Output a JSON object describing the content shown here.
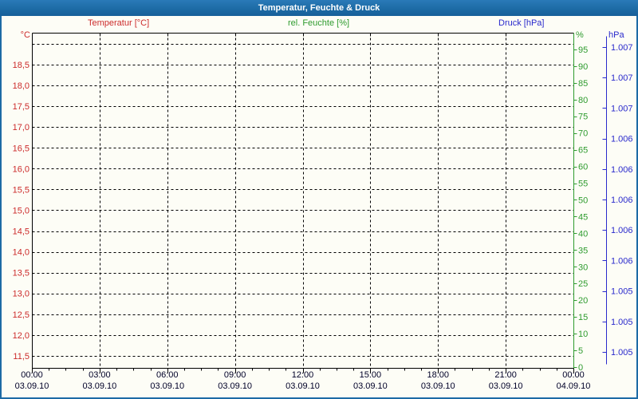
{
  "window": {
    "title": "Temperatur, Feuchte & Druck"
  },
  "colors": {
    "titlebar_bg": "#1d6ba5",
    "titlebar_text": "#ffffff",
    "background": "#fdfdf6",
    "frame": "#000000",
    "grid": "#000000",
    "x_label": "#000028",
    "temperature": "#cc2b2b",
    "humidity": "#2e9b2e",
    "pressure": "#2929cc"
  },
  "chart_data": {
    "type": "line",
    "title": "Temperatur, Feuchte & Druck",
    "legend_position": "top",
    "plotted_points_visible": false,
    "series": [
      {
        "name": "Temperatur [°C]",
        "color": "#cc2b2b",
        "axis": "temperature",
        "points": []
      },
      {
        "name": "rel. Feuchte [%]",
        "color": "#2e9b2e",
        "axis": "humidity",
        "points": []
      },
      {
        "name": "Druck [hPa]",
        "color": "#2929cc",
        "axis": "pressure",
        "points": []
      }
    ],
    "axes": {
      "temperature": {
        "unit": "°C",
        "side": "left",
        "tick_step_value": 0.5,
        "unlabeled_top_gridline": true,
        "tick_labels": [
          "18,5",
          "18,0",
          "17,5",
          "17,0",
          "16,5",
          "16,0",
          "15,5",
          "15,0",
          "14,5",
          "14,0",
          "13,5",
          "13,0",
          "12,5",
          "12,0",
          "11,5"
        ]
      },
      "humidity": {
        "unit": "%",
        "side": "right-inner",
        "range": [
          0,
          100
        ],
        "tick_labels": [
          "95",
          "90",
          "85",
          "80",
          "75",
          "70",
          "65",
          "60",
          "55",
          "50",
          "45",
          "40",
          "35",
          "30",
          "25",
          "20",
          "15",
          "10",
          "5",
          "0"
        ]
      },
      "pressure": {
        "unit": "hPa",
        "side": "right-outer",
        "tick_labels": [
          "1.007",
          "1.007",
          "1.007",
          "1.006",
          "1.006",
          "1.006",
          "1.006",
          "1.006",
          "1.005",
          "1.005",
          "1.005"
        ]
      },
      "x": {
        "minor_ticks_per_interval": 3,
        "tick_times": [
          "00:00",
          "03:00",
          "06:00",
          "09:00",
          "12:00",
          "15:00",
          "18:00",
          "21:00",
          "00:00"
        ],
        "tick_dates": [
          "03.09.10",
          "03.09.10",
          "03.09.10",
          "03.09.10",
          "03.09.10",
          "03.09.10",
          "03.09.10",
          "03.09.10",
          "04.09.10"
        ]
      }
    },
    "grid": {
      "style": "dashed",
      "color": "#000000",
      "h_step_celsius": 0.5,
      "v_step_hours": 3
    }
  }
}
